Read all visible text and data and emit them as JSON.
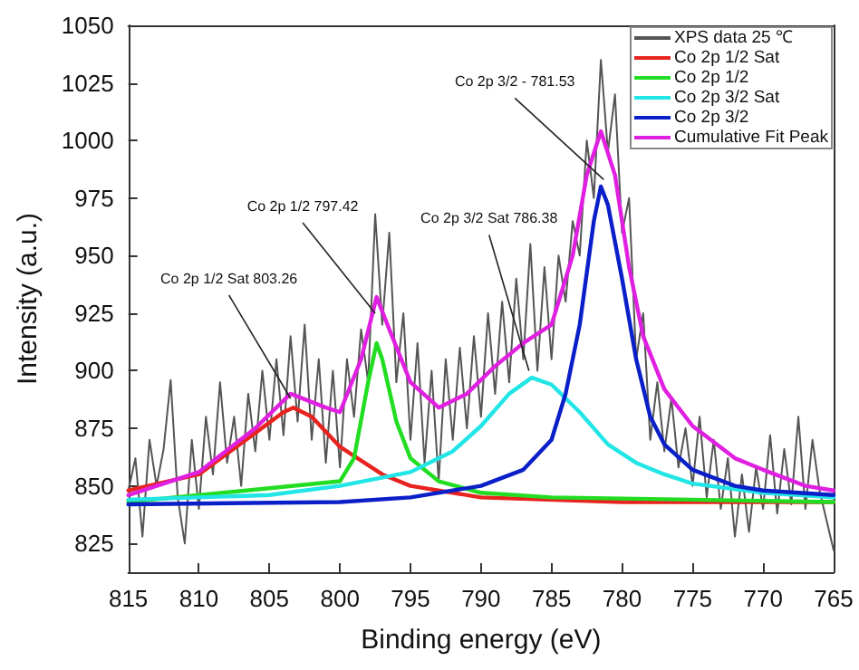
{
  "chart_data": {
    "type": "line",
    "xlabel": "Binding energy (eV)",
    "ylabel": "Intensity (a.u.)",
    "xlim": [
      815,
      765
    ],
    "xticks": [
      815,
      810,
      805,
      800,
      795,
      790,
      785,
      780,
      775,
      770,
      765
    ],
    "ylim": [
      812.5,
      1050
    ],
    "yticks": [
      825,
      850,
      875,
      900,
      925,
      950,
      975,
      1000,
      1025,
      1050
    ],
    "grid": false,
    "legend": "top right",
    "marker": "none",
    "line_style": "solid",
    "annotations": [
      {
        "text": "Co 2p 1/2 Sat 803.26",
        "x": 803.5,
        "y": 888
      },
      {
        "text": "Co 2p 1/2 797.42",
        "x": 797.5,
        "y": 925
      },
      {
        "text": "Co 2p 3/2 Sat 786.38",
        "x": 786.6,
        "y": 900
      },
      {
        "text": "Co 2p 3/2 - 781.53",
        "x": 781.3,
        "y": 983
      }
    ],
    "series": [
      {
        "name": "XPS data 25 ℃",
        "color": "#555555",
        "x": [
          815,
          814.5,
          814,
          813.5,
          813,
          812.5,
          812,
          811.5,
          811,
          810.5,
          810,
          809.5,
          809,
          808.5,
          808,
          807.5,
          807,
          806.5,
          806,
          805.5,
          805,
          804.5,
          804,
          803.5,
          803,
          802.5,
          802,
          801.5,
          801,
          800.5,
          800,
          799.5,
          799,
          798.5,
          798,
          797.5,
          797,
          796.5,
          796,
          795.5,
          795,
          794.5,
          794,
          793.5,
          793,
          792.5,
          792,
          791.5,
          791,
          790.5,
          790,
          789.5,
          789,
          788.5,
          788,
          787.5,
          787,
          786.5,
          786,
          785.5,
          785,
          784.5,
          784,
          783.5,
          783,
          782.5,
          782,
          781.5,
          781,
          780.5,
          780,
          779.5,
          779,
          778.5,
          778,
          777.5,
          777,
          776.5,
          776,
          775.5,
          775,
          774.5,
          774,
          773.5,
          773,
          772.5,
          772,
          771.5,
          771,
          770.5,
          770,
          769.5,
          769,
          768.5,
          768,
          767.5,
          767,
          766.5,
          766,
          765.5,
          765
        ],
        "values": [
          848,
          862,
          828,
          870,
          850,
          866,
          896,
          845,
          825,
          870,
          840,
          880,
          855,
          895,
          860,
          880,
          850,
          890,
          865,
          900,
          870,
          905,
          872,
          915,
          878,
          920,
          870,
          905,
          860,
          900,
          858,
          905,
          880,
          918,
          895,
          968,
          920,
          960,
          895,
          925,
          870,
          912,
          860,
          900,
          852,
          905,
          870,
          910,
          875,
          915,
          880,
          925,
          890,
          930,
          895,
          940,
          905,
          955,
          900,
          945,
          905,
          950,
          930,
          965,
          950,
          1000,
          975,
          1035,
          995,
          1020,
          960,
          975,
          905,
          925,
          870,
          895,
          865,
          888,
          858,
          875,
          850,
          880,
          845,
          870,
          840,
          862,
          828,
          855,
          830,
          858,
          840,
          872,
          838,
          866,
          842,
          880,
          840,
          870,
          848,
          835,
          822
        ]
      },
      {
        "name": "Co 2p 1/2 Sat",
        "color": "#e8231f",
        "x": [
          815,
          810,
          806,
          804,
          803.3,
          802,
          800,
          797,
          795,
          790,
          780,
          765
        ],
        "values": [
          848,
          855,
          873,
          882,
          884,
          880,
          867,
          855,
          850,
          845,
          843,
          843
        ]
      },
      {
        "name": "Co 2p 1/2",
        "color": "#22dd22",
        "x": [
          815,
          800,
          799,
          798,
          797.4,
          797,
          796,
          795,
          793,
          790,
          785,
          765
        ],
        "values": [
          843,
          852,
          862,
          895,
          912,
          905,
          878,
          862,
          852,
          847,
          845,
          843
        ]
      },
      {
        "name": "Co 2p 3/2 Sat",
        "color": "#22e5e5",
        "x": [
          815,
          805,
          800,
          795,
          792,
          790,
          788,
          786.4,
          785,
          783,
          781,
          779,
          777,
          775,
          770,
          765
        ],
        "values": [
          844,
          846,
          850,
          856,
          865,
          876,
          890,
          897,
          894,
          882,
          868,
          860,
          855,
          851,
          847,
          845
        ]
      },
      {
        "name": "Co 2p 3/2",
        "color": "#0a1fc8",
        "x": [
          815,
          800,
          795,
          790,
          787,
          785,
          784,
          783,
          782,
          781.5,
          781,
          780,
          779,
          778,
          777,
          775,
          772,
          770,
          765
        ],
        "values": [
          842,
          843,
          845,
          850,
          857,
          870,
          890,
          920,
          965,
          980,
          972,
          940,
          905,
          880,
          868,
          857,
          850,
          848,
          846
        ]
      },
      {
        "name": "Cumulative Fit Peak",
        "color": "#e020e0",
        "x": [
          815,
          810,
          806,
          803.5,
          801,
          800,
          798.5,
          797.4,
          796.5,
          795,
          793,
          791,
          789,
          787,
          785,
          783.5,
          782.5,
          781.5,
          780.5,
          779.5,
          778.5,
          777,
          775,
          772,
          770,
          767,
          765
        ],
        "values": [
          846,
          856,
          875,
          890,
          884,
          882,
          905,
          932,
          918,
          895,
          884,
          890,
          902,
          912,
          920,
          950,
          985,
          1004,
          985,
          945,
          915,
          892,
          876,
          862,
          857,
          850,
          848
        ]
      }
    ]
  }
}
